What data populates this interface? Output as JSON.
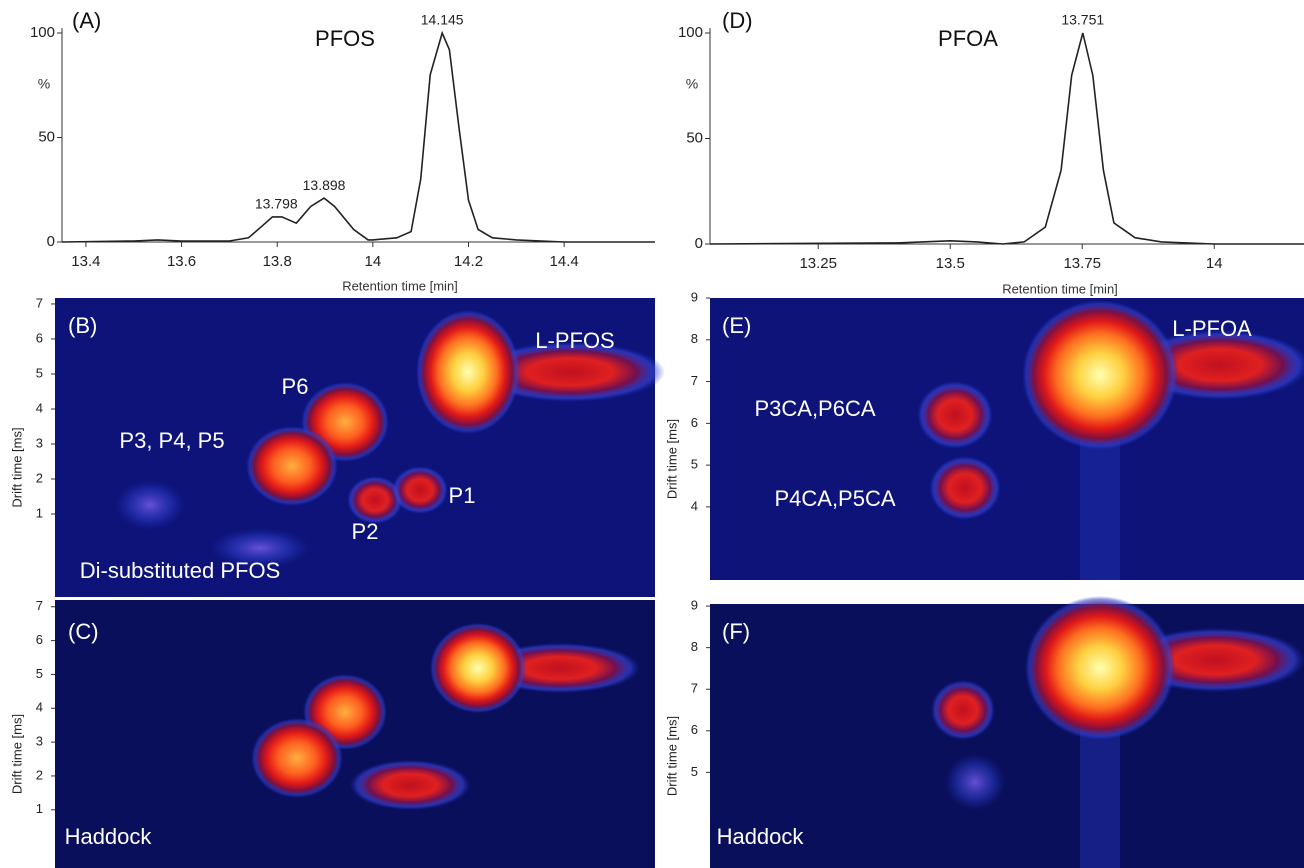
{
  "chart_data": [
    {
      "type": "line",
      "panel": "(A)",
      "title": "PFOS",
      "xlabel": "Retention time [min]",
      "ylabel": "%",
      "x": [
        13.35,
        13.5,
        13.55,
        13.6,
        13.7,
        13.74,
        13.77,
        13.79,
        13.81,
        13.84,
        13.87,
        13.898,
        13.92,
        13.96,
        13.99,
        14.0,
        14.05,
        14.08,
        14.1,
        14.12,
        14.145,
        14.16,
        14.18,
        14.2,
        14.22,
        14.25,
        14.3,
        14.4,
        14.59
      ],
      "series": [
        {
          "color": "#222222",
          "values": [
            0,
            0.5,
            1,
            0.5,
            0.5,
            2,
            8,
            12,
            12,
            9,
            17,
            21,
            17,
            6,
            1,
            1,
            2,
            5,
            30,
            80,
            100,
            92,
            55,
            20,
            6,
            2,
            1,
            0,
            0
          ]
        }
      ],
      "peak_labels": [
        13.798,
        13.898,
        14.145
      ],
      "xlim": [
        13.35,
        14.59
      ],
      "ylim": [
        0,
        100
      ],
      "xticks": [
        13.4,
        13.6,
        13.8,
        14,
        14.2,
        14.4
      ],
      "yticks": [
        0,
        50,
        100
      ]
    },
    {
      "type": "heatmap",
      "panel": "(B)",
      "ylabel": "Drift time [ms]",
      "ylim": [
        -1.37,
        7.17
      ],
      "yticks": [
        1,
        2,
        3,
        4,
        5,
        6,
        7
      ],
      "annotations": [
        "L-PFOS",
        "P6",
        "P3, P4, P5",
        "P1",
        "P2",
        "Di-substituted PFOS"
      ]
    },
    {
      "type": "heatmap",
      "panel": "(C)",
      "ylabel": "Drift time [ms]",
      "ylim": [
        -0.72,
        7.2
      ],
      "yticks": [
        1,
        2,
        3,
        4,
        5,
        6,
        7
      ],
      "annotations": [
        "Haddock"
      ]
    },
    {
      "type": "line",
      "panel": "(D)",
      "title": "PFOA",
      "xlabel": "Retention time [min]",
      "ylabel": "%",
      "x": [
        13.045,
        13.4,
        13.5,
        13.55,
        13.6,
        13.64,
        13.68,
        13.71,
        13.73,
        13.751,
        13.77,
        13.79,
        13.81,
        13.85,
        13.9,
        14.0,
        14.17
      ],
      "series": [
        {
          "color": "#222222",
          "values": [
            0,
            0.5,
            1.5,
            1,
            0,
            1,
            8,
            35,
            80,
            100,
            80,
            35,
            10,
            3,
            1,
            0,
            0
          ]
        }
      ],
      "peak_labels": [
        13.751
      ],
      "xlim": [
        13.045,
        14.17
      ],
      "ylim": [
        0,
        100
      ],
      "xticks": [
        13.25,
        13.5,
        13.75,
        14
      ],
      "yticks": [
        0,
        50,
        100
      ]
    },
    {
      "type": "heatmap",
      "panel": "(E)",
      "ylabel": "Drift time [ms]",
      "ylim": [
        2.25,
        9
      ],
      "yticks": [
        4,
        5,
        6,
        7,
        8,
        9
      ],
      "annotations": [
        "L-PFOA",
        "P3CA,P6CA",
        "P4CA,P5CA"
      ]
    },
    {
      "type": "heatmap",
      "panel": "(F)",
      "ylabel": "Drift time [ms]",
      "ylim": [
        2.7,
        9.05
      ],
      "yticks": [
        5,
        6,
        7,
        8,
        9
      ],
      "annotations": [
        "Haddock"
      ]
    }
  ]
}
